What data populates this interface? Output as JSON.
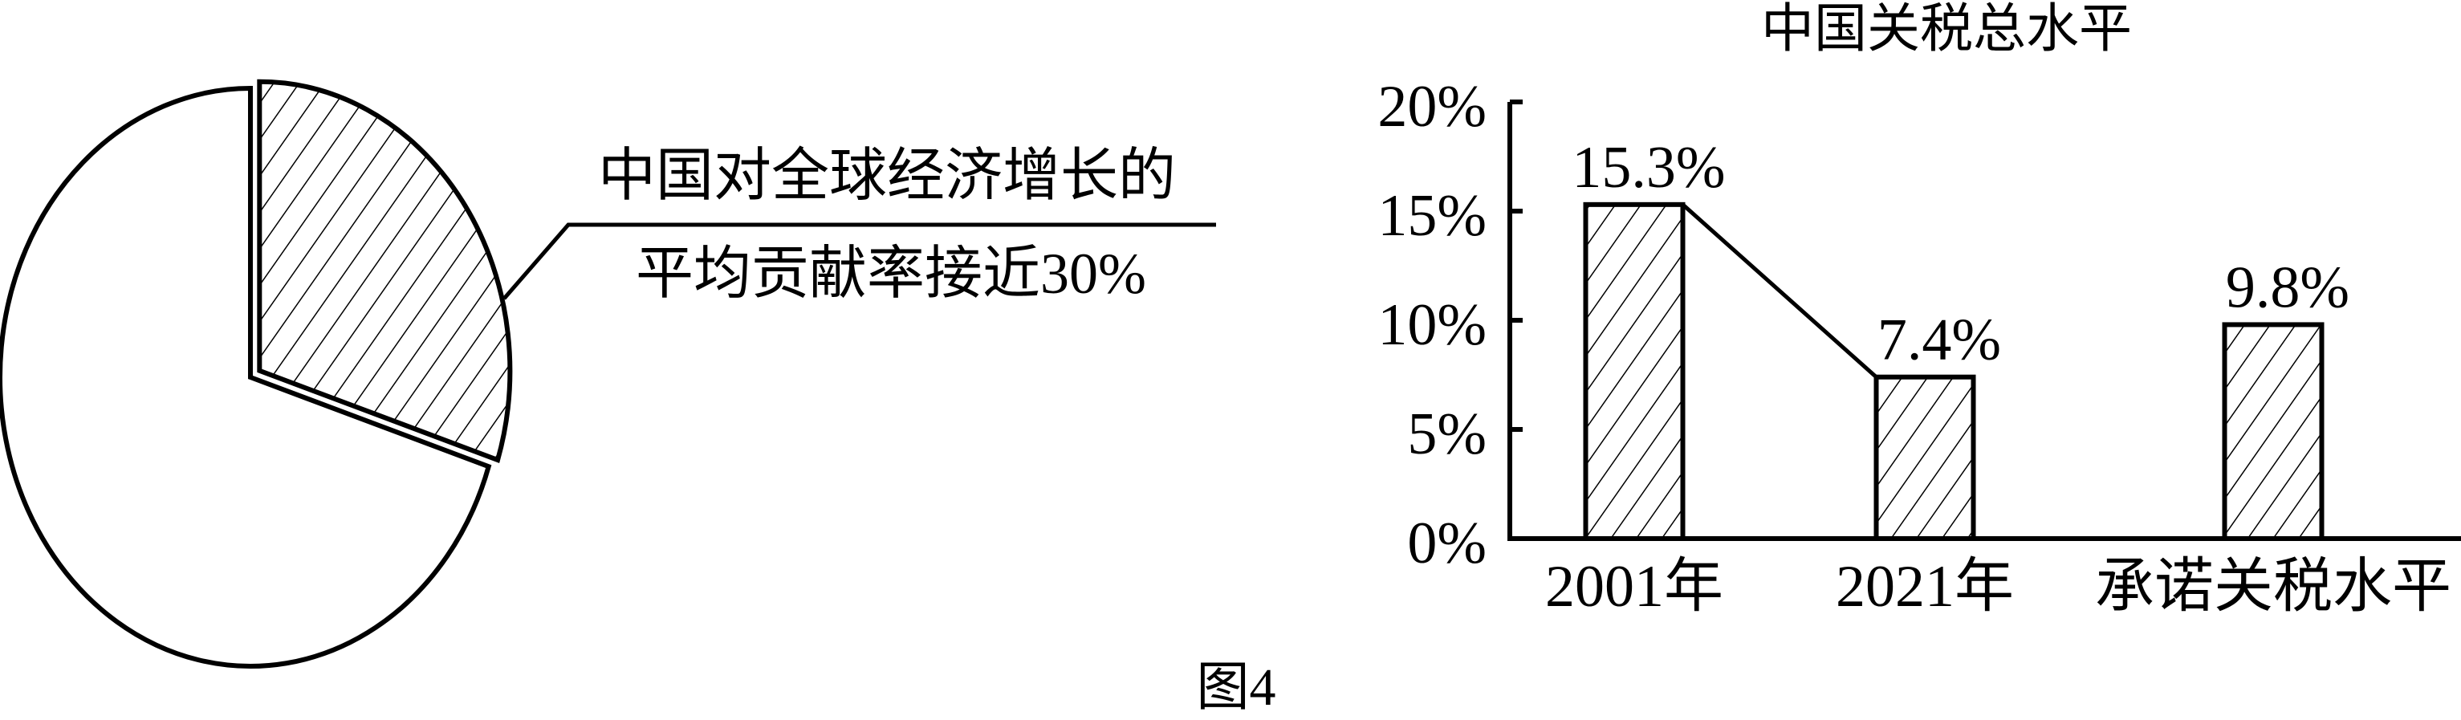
{
  "figure_caption": "图4",
  "chart_data": [
    {
      "type": "pie",
      "slices": [
        {
          "label": "中国对全球经济增长的平均贡献率接近30%",
          "value": 30,
          "pattern": "hatched",
          "exploded": true
        },
        {
          "label": "",
          "value": 70,
          "pattern": "none"
        }
      ],
      "annotation_lines": [
        "中国对全球经济增长的",
        "平均贡献率接近30%"
      ]
    },
    {
      "type": "bar",
      "title": "中国关税总水平",
      "categories": [
        "2001年",
        "2021年",
        "承诺关税水平"
      ],
      "values": [
        15.3,
        7.4,
        9.8
      ],
      "data_labels": [
        "15.3%",
        "7.4%",
        "9.8%"
      ],
      "ylim": [
        0,
        20
      ],
      "yticks": [
        "0%",
        "5%",
        "10%",
        "15%",
        "20%"
      ],
      "ytick_values": [
        0,
        5,
        10,
        15,
        20
      ],
      "connector_line": [
        "2001年",
        "2021年"
      ],
      "bar_pattern": "hatched",
      "grid": false,
      "colors": {
        "stroke": "#000000",
        "fill": "#ffffff"
      }
    }
  ]
}
